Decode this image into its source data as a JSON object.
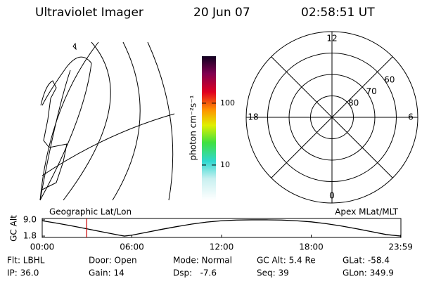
{
  "header": {
    "title": "Ultraviolet Imager",
    "date": "20 Jun 07",
    "time": "02:58:51 UT"
  },
  "colorbar": {
    "label": "photon cm⁻²s⁻¹",
    "scale": "log",
    "clim": [
      2.7,
      575
    ],
    "ticks": [
      10,
      100
    ]
  },
  "polar": {
    "rlim": [
      90,
      50
    ],
    "rings": [
      80,
      70,
      60
    ],
    "mlt_labels": [
      12,
      6,
      0,
      18
    ]
  },
  "altitude_chart": {
    "left_label": "Geographic Lat/Lon",
    "right_label": "Apex MLat/MLT",
    "ylabel": "GC Alt",
    "xlim": [
      0,
      24
    ],
    "ylim": [
      1.2,
      9.6
    ],
    "yticks": [
      {
        "value": 9.0,
        "label": "9.0"
      },
      1.8
    ],
    "xticks": [
      {
        "value": 0,
        "label": "00:00"
      },
      {
        "value": 6,
        "label": "06:00"
      },
      {
        "value": 12,
        "label": "12:00"
      },
      {
        "value": 18,
        "label": "18:00"
      },
      {
        "value": 23.983,
        "label": "23:59"
      }
    ],
    "x": [
      0,
      1,
      2,
      3,
      4,
      5,
      5.5,
      6,
      7,
      8,
      9,
      10,
      11,
      12,
      13,
      14,
      15,
      16,
      17,
      18,
      19,
      20,
      21,
      22,
      23,
      24
    ],
    "values": [
      8.6,
      7.5,
      6.3,
      5.0,
      3.7,
      2.4,
      1.8,
      2.2,
      3.5,
      4.8,
      6.0,
      7.1,
      8.0,
      8.6,
      8.9,
      9.0,
      9.0,
      8.9,
      8.6,
      8.1,
      7.3,
      6.3,
      5.1,
      3.8,
      2.5,
      1.8
    ],
    "color": "#000000",
    "marker_color": "#cc0000"
  },
  "info": [
    [
      "Flt: LBHL",
      "Door: Open",
      "Mode: Normal",
      "GC Alt: 5.4 Re",
      "GLat: -58.4"
    ],
    [
      "IP: 36.0",
      "Gain: 14",
      "Dsp:   -7.6",
      "Seq: 39",
      "GLon: 349.9"
    ]
  ]
}
